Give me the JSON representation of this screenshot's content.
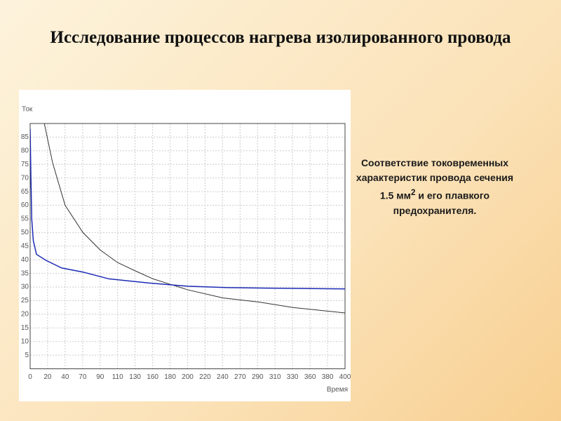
{
  "slide": {
    "title": "Исследование процессов нагрева изолированного провода",
    "caption": [
      "Соответствие токовременных характеристик провода сечения 1.5 мм",
      "2",
      " и его плавкого предохранителя."
    ]
  },
  "chart_data": {
    "type": "line",
    "xlabel": "Время",
    "ylabel": "Ток",
    "xlim": [
      0,
      400
    ],
    "ylim": [
      0,
      90
    ],
    "grid": true,
    "xticks": [
      {
        "value": 0,
        "label": "0"
      },
      {
        "value": 22.2,
        "label": "20"
      },
      {
        "value": 44.4,
        "label": "40"
      },
      {
        "value": 66.7,
        "label": "70"
      },
      {
        "value": 88.9,
        "label": "90"
      },
      {
        "value": 111.1,
        "label": "110"
      },
      {
        "value": 133.3,
        "label": "130"
      },
      {
        "value": 155.6,
        "label": "160"
      },
      {
        "value": 177.8,
        "label": "180"
      },
      {
        "value": 200,
        "label": "200"
      },
      {
        "value": 222.2,
        "label": "220"
      },
      {
        "value": 244.4,
        "label": "240"
      },
      {
        "value": 266.7,
        "label": "270"
      },
      {
        "value": 288.9,
        "label": "290"
      },
      {
        "value": 311.1,
        "label": "310"
      },
      {
        "value": 333.3,
        "label": "330"
      },
      {
        "value": 355.6,
        "label": "360"
      },
      {
        "value": 377.8,
        "label": "380"
      },
      {
        "value": 400,
        "label": "400"
      }
    ],
    "yticks": [
      5,
      10,
      15,
      20,
      25,
      30,
      35,
      40,
      45,
      50,
      55,
      60,
      65,
      70,
      75,
      80,
      85
    ],
    "series": [
      {
        "color": "#333333",
        "x": [
          18,
          28.5,
          44.4,
          67,
          89,
          111,
          133,
          156,
          178,
          200,
          245,
          290,
          334,
          400
        ],
        "values": [
          90,
          75.6,
          60,
          50,
          43.6,
          39,
          36,
          33,
          31,
          29,
          26,
          24.5,
          22.5,
          20.5
        ]
      },
      {
        "color": "#1c2bb5",
        "x": [
          0,
          1,
          2,
          4,
          8,
          20,
          40,
          67,
          100,
          150,
          200,
          250,
          300,
          400
        ],
        "values": [
          88,
          70,
          55,
          47,
          42,
          39.8,
          37,
          35.5,
          33,
          31.5,
          30.3,
          29.8,
          29.6,
          29.3
        ]
      }
    ]
  }
}
